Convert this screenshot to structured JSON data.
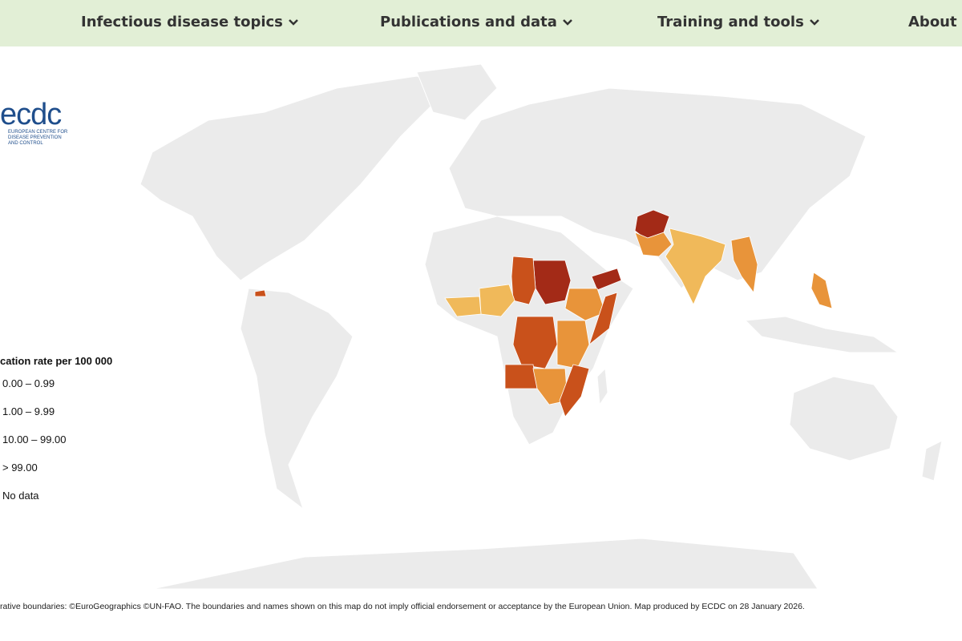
{
  "nav": {
    "items": [
      "Infectious disease topics",
      "Publications and data",
      "Training and tools",
      "About E"
    ]
  },
  "logo": {
    "name": "ecdc",
    "lines": [
      "EUROPEAN CENTRE FOR",
      "DISEASE PREVENTION",
      "AND CONTROL"
    ]
  },
  "legend": {
    "title": "cation rate per 100 000",
    "items": [
      "0.00 – 0.99",
      "1.00 – 9.99",
      "10.00 – 99.00",
      "> 99.00",
      "No data"
    ]
  },
  "footer": "rative boundaries: ©EuroGeographics ©UN-FAO. The boundaries and names shown on this map do not imply official endorsement or acceptance by the European Union. Map produced by ECDC on 28 January 2026."
}
